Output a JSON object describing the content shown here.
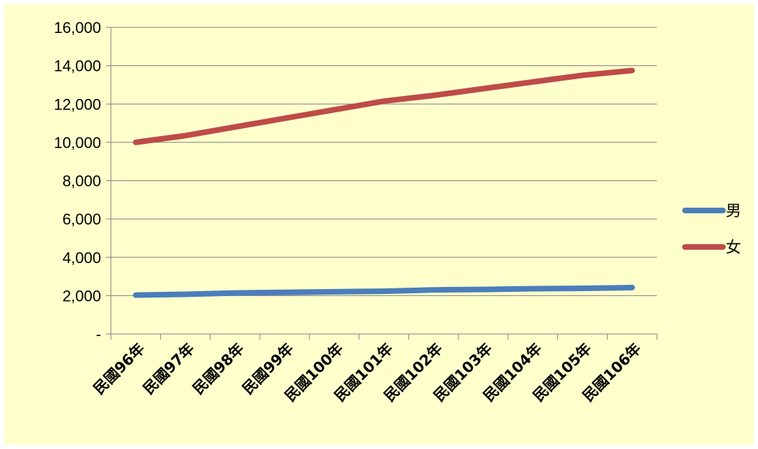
{
  "chart_data": {
    "type": "line",
    "title": "",
    "xlabel": "",
    "ylabel": "",
    "categories": [
      "民國96年",
      "民國97年",
      "民國98年",
      "民國99年",
      "民國100年",
      "民國101年",
      "民國102年",
      "民國103年",
      "民國104年",
      "民國105年",
      "民國106年"
    ],
    "y_tick_labels": [
      "-",
      "2,000",
      "4,000",
      "6,000",
      "8,000",
      "10,000",
      "12,000",
      "14,000",
      "16,000"
    ],
    "ylim": [
      0,
      16000
    ],
    "grid": true,
    "legend_position": "right",
    "series": [
      {
        "name": "男",
        "color": "#4a7ebb",
        "values": [
          2030,
          2070,
          2140,
          2170,
          2200,
          2230,
          2300,
          2320,
          2360,
          2380,
          2420
        ]
      },
      {
        "name": "女",
        "color": "#be4b48",
        "values": [
          10000,
          10350,
          10800,
          11250,
          11700,
          12150,
          12450,
          12800,
          13150,
          13500,
          13750
        ]
      }
    ]
  }
}
